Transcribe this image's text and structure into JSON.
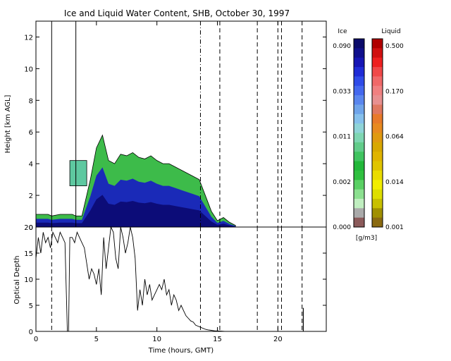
{
  "title": "Ice and Liquid Water Content, SHB, October 30, 1997",
  "colorbar": {
    "ice_label": "Ice",
    "liquid_label": "Liquid",
    "units": "[g/m3]",
    "ice_ticks": [
      "0.090",
      "0.033",
      "0.011",
      "0.002",
      "0.000"
    ],
    "liquid_ticks": [
      "0.500",
      "0.170",
      "0.064",
      "0.014",
      "0.001"
    ],
    "ice_colors": [
      "#0b0b6a",
      "#10108c",
      "#1616b4",
      "#1f2cd6",
      "#2f4be8",
      "#4468ee",
      "#5a86ee",
      "#6fa4ea",
      "#86c0ec",
      "#8fd4d8",
      "#7ed6b2",
      "#62cc8a",
      "#40c460",
      "#22b83a",
      "#30c040",
      "#5ad064",
      "#8ce090",
      "#c0eec0",
      "#aaaaaa",
      "#8b5a5a"
    ],
    "liquid_colors": [
      "#b00000",
      "#d01010",
      "#ee2020",
      "#f04848",
      "#f06868",
      "#f08080",
      "#e89090",
      "#e07860",
      "#e87a2a",
      "#e88a20",
      "#e09a10",
      "#d8a800",
      "#e0b400",
      "#e0c400",
      "#eadc00",
      "#f2ee00",
      "#dede00",
      "#c8c000",
      "#a09000",
      "#8a6a10"
    ]
  },
  "chart_data": [
    {
      "panel": "content",
      "type": "heatmap",
      "ylabel": "Height [km AGL]",
      "xlim": [
        0,
        24
      ],
      "ylim": [
        0,
        13
      ],
      "yticks": [
        "0",
        "2",
        "4",
        "6",
        "8",
        "10",
        "12"
      ],
      "solid_lines_x": [
        1.3,
        3.3
      ],
      "dash_dot_lines_x": [
        13.6
      ],
      "dashed_lines_x": [
        15.2,
        18.3,
        20.0,
        20.3,
        22.0
      ],
      "cloud_profile": {
        "time": [
          0.0,
          0.5,
          1.0,
          1.3,
          2.0,
          2.5,
          3.0,
          3.3,
          3.8,
          4.5,
          5.0,
          5.5,
          6.0,
          6.5,
          7.0,
          7.5,
          8.0,
          8.5,
          9.0,
          9.5,
          10.0,
          10.5,
          11.0,
          11.5,
          12.0,
          12.5,
          13.0,
          13.5,
          14.0,
          14.5,
          15.0,
          15.5,
          16.0,
          16.5
        ],
        "top_km": [
          0.8,
          0.8,
          0.8,
          0.7,
          0.8,
          0.8,
          0.8,
          0.7,
          0.7,
          3.0,
          5.0,
          5.8,
          4.2,
          4.0,
          4.6,
          4.5,
          4.7,
          4.4,
          4.3,
          4.5,
          4.2,
          4.0,
          4.0,
          3.8,
          3.6,
          3.4,
          3.2,
          3.0,
          2.0,
          1.0,
          0.4,
          0.6,
          0.3,
          0.1
        ]
      },
      "high_cloud": {
        "time_range": [
          2.8,
          4.2
        ],
        "bottom_km": 2.6,
        "top_km": 4.2
      }
    },
    {
      "panel": "optical_depth",
      "type": "line",
      "xlabel": "Time (hours, GMT)",
      "ylabel": "Optical Depth",
      "xlim": [
        0,
        24
      ],
      "ylim": [
        0,
        20
      ],
      "xticks": [
        "0",
        "5",
        "10",
        "15",
        "20"
      ],
      "yticks": [
        "0",
        "5",
        "10",
        "15",
        "20"
      ],
      "series": [
        {
          "x": [
            0.0,
            0.2,
            0.4,
            0.6,
            0.8,
            1.0,
            1.2,
            1.4,
            1.6,
            1.8,
            2.0,
            2.2,
            2.4,
            2.6,
            2.7,
            2.8,
            3.0,
            3.2,
            3.4,
            3.6,
            3.8,
            4.0,
            4.2,
            4.4,
            4.6,
            4.8,
            5.0,
            5.2,
            5.4,
            5.6,
            5.8,
            6.0,
            6.2,
            6.4,
            6.6,
            6.8,
            7.0,
            7.2,
            7.4,
            7.6,
            7.8,
            8.0,
            8.2,
            8.4,
            8.6,
            8.8,
            9.0,
            9.2,
            9.4,
            9.6,
            9.8,
            10.0,
            10.2,
            10.4,
            10.6,
            10.8,
            11.0,
            11.2,
            11.4,
            11.6,
            11.8,
            12.0,
            12.2,
            12.4,
            12.6,
            12.8,
            13.0,
            13.2,
            13.4,
            13.6,
            13.8,
            14.0,
            14.2,
            14.5,
            14.8,
            15.0,
            15.3,
            15.6,
            16.0,
            16.5
          ],
          "y": [
            14,
            18,
            15,
            19,
            17,
            18,
            16,
            19,
            18,
            17,
            19,
            18,
            17,
            0,
            0,
            18,
            18,
            17,
            19,
            18,
            17,
            16,
            13,
            10,
            12,
            11,
            9,
            12,
            7,
            18,
            12,
            16,
            20,
            19,
            14,
            12,
            20,
            18,
            15,
            17,
            20,
            18,
            14,
            4,
            8,
            5,
            10,
            7,
            9,
            6,
            7,
            8,
            9,
            8,
            10,
            7,
            8,
            5,
            7,
            6,
            4,
            5,
            4,
            3,
            2.5,
            2,
            1.8,
            1.2,
            1.0,
            0.8,
            0.6,
            0.4,
            0.3,
            0.2,
            0.1,
            0.1,
            0.05,
            0,
            0,
            0
          ]
        }
      ],
      "spikes_x": [
        22.1
      ],
      "spike_height": 4.5,
      "dashed_lines_x": [
        1.3,
        13.6,
        15.2,
        18.3,
        20.0,
        20.3,
        22.0
      ]
    }
  ]
}
